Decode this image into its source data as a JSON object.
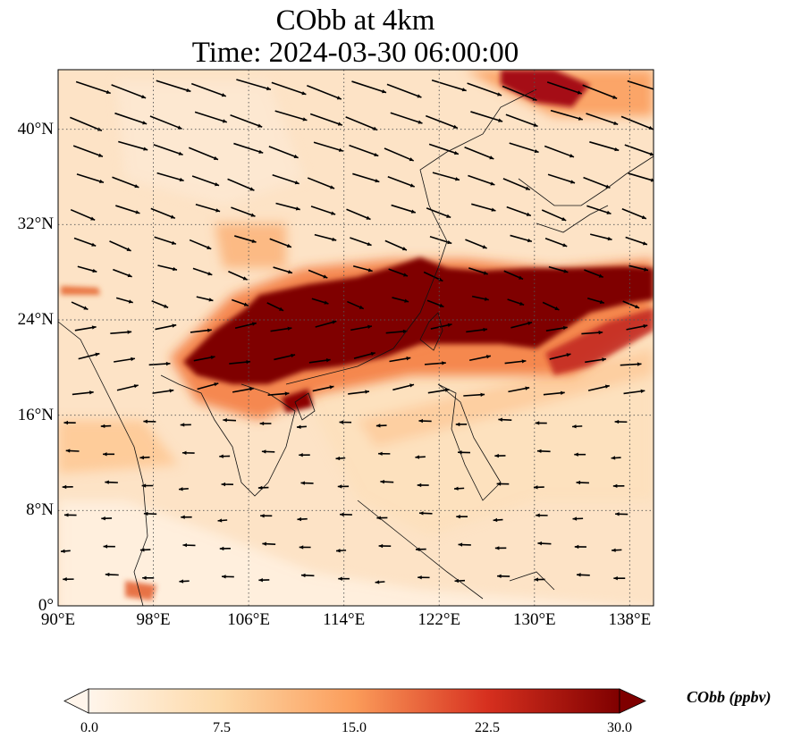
{
  "title": {
    "line1": "CObb at 4km",
    "line2": "Time: 2024-03-30 06:00:00"
  },
  "map": {
    "lon_range": [
      90,
      140
    ],
    "lat_range": [
      0,
      45
    ],
    "lat_ticks": [
      {
        "value": 0,
        "label": "0°"
      },
      {
        "value": 8,
        "label": "8°N"
      },
      {
        "value": 16,
        "label": "16°N"
      },
      {
        "value": 24,
        "label": "24°N"
      },
      {
        "value": 32,
        "label": "32°N"
      },
      {
        "value": 40,
        "label": "40°N"
      }
    ],
    "lon_ticks": [
      {
        "value": 90,
        "label": "90°E"
      },
      {
        "value": 98,
        "label": "98°E"
      },
      {
        "value": 106,
        "label": "106°E"
      },
      {
        "value": 114,
        "label": "114°E"
      },
      {
        "value": 122,
        "label": "122°E"
      },
      {
        "value": 130,
        "label": "130°E"
      },
      {
        "value": 138,
        "label": "138°E"
      }
    ],
    "gridlines": true,
    "field": "CO from biomass burning at 4km, high-concentration band from Indochina northeastward across southern China to Japan and the Pacific",
    "wind_vectors": "westerly/northwesterly north of 24°N, weak easterlies to the south"
  },
  "colorbar": {
    "label": "CObb (ppbv)",
    "min": 0.0,
    "max": 30.0,
    "extend": "both",
    "colormap": [
      "#fff5eb",
      "#fdd9a8",
      "#fdae6b",
      "#e6550d",
      "#a50f15",
      "#7f0000"
    ],
    "ticks": [
      "0.0",
      "7.5",
      "15.0",
      "22.5",
      "30.0"
    ]
  }
}
